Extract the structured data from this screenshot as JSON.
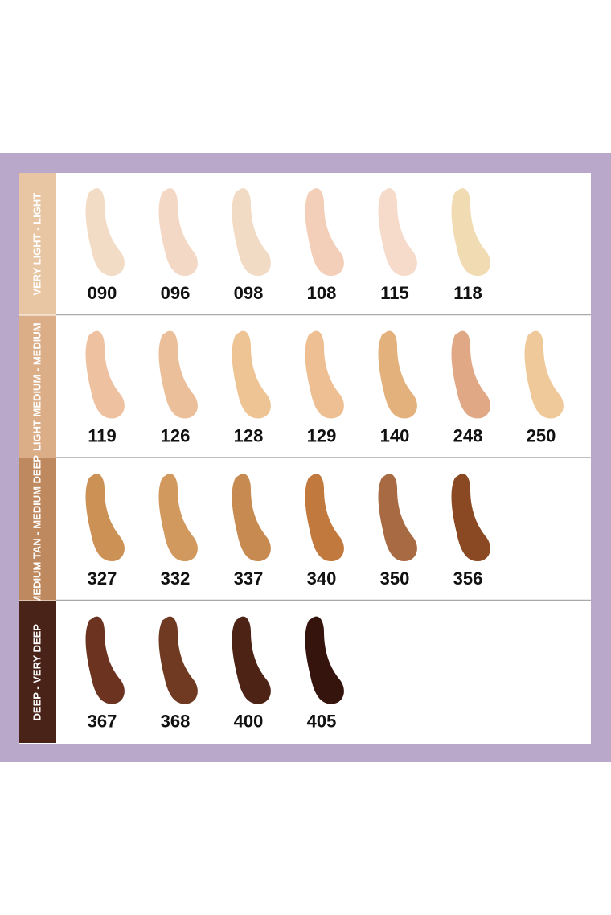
{
  "groups": [
    {
      "label": "VERY LIGHT - LIGHT",
      "color": "#e8c6a3",
      "shades": [
        {
          "code": "090",
          "color": "#f3dcc5"
        },
        {
          "code": "096",
          "color": "#f4d8c6"
        },
        {
          "code": "098",
          "color": "#f2dbc4"
        },
        {
          "code": "108",
          "color": "#f3cfb9"
        },
        {
          "code": "115",
          "color": "#f6dbca"
        },
        {
          "code": "118",
          "color": "#f1dbb3"
        }
      ]
    },
    {
      "label": "LIGHT MEDIUM - MEDIUM",
      "color": "#dbae88",
      "shades": [
        {
          "code": "119",
          "color": "#eec2a1"
        },
        {
          "code": "126",
          "color": "#ebbf9a"
        },
        {
          "code": "128",
          "color": "#eec495"
        },
        {
          "code": "129",
          "color": "#edbf93"
        },
        {
          "code": "140",
          "color": "#e3b17b"
        },
        {
          "code": "248",
          "color": "#e0a885"
        },
        {
          "code": "250",
          "color": "#efc999"
        }
      ]
    },
    {
      "label": "MEDIUM TAN - MEDIUM DEEP",
      "color": "#bf895f",
      "shades": [
        {
          "code": "327",
          "color": "#cc9155"
        },
        {
          "code": "332",
          "color": "#d1995d"
        },
        {
          "code": "337",
          "color": "#c78b51"
        },
        {
          "code": "340",
          "color": "#c2793e"
        },
        {
          "code": "350",
          "color": "#a86a43"
        },
        {
          "code": "356",
          "color": "#8a4922"
        }
      ]
    },
    {
      "label": "DEEP - VERY DEEP",
      "color": "#4a2318",
      "shades": [
        {
          "code": "367",
          "color": "#6b3320"
        },
        {
          "code": "368",
          "color": "#703a22"
        },
        {
          "code": "400",
          "color": "#4d2316"
        },
        {
          "code": "405",
          "color": "#35140e"
        }
      ]
    }
  ]
}
